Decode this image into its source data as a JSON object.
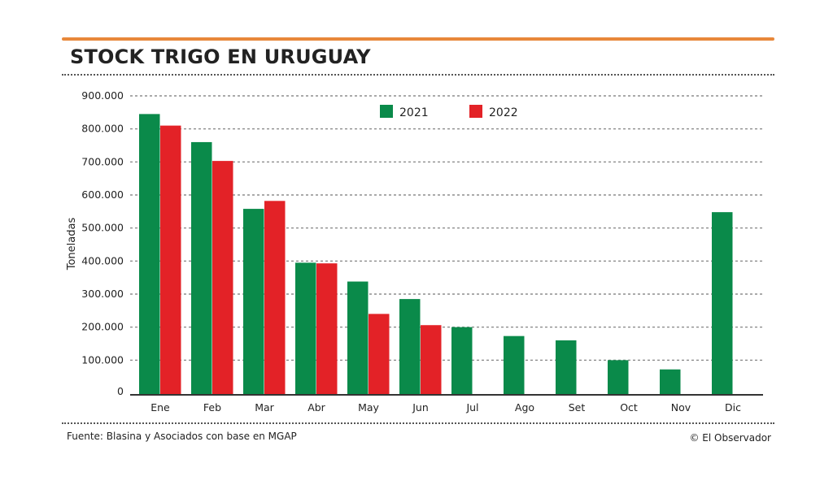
{
  "header": {
    "title": "STOCK TRIGO EN URUGUAY",
    "rule_color": "#e8883a"
  },
  "footer": {
    "source": "Fuente: Blasina y Asociados con base en MGAP",
    "credit": "© El Observador"
  },
  "chart_data": {
    "type": "bar",
    "title": "STOCK TRIGO EN URUGUAY",
    "xlabel": "",
    "ylabel": "Toneladas",
    "ylim": [
      0,
      900000
    ],
    "yticks": [
      0,
      100000,
      200000,
      300000,
      400000,
      500000,
      600000,
      700000,
      800000,
      900000
    ],
    "ytick_labels": [
      "0",
      "100.000",
      "200.000",
      "300.000",
      "400.000",
      "500.000",
      "600.000",
      "700.000",
      "800.000",
      "900.000"
    ],
    "grid": true,
    "legend_position": "top",
    "categories": [
      "Ene",
      "Feb",
      "Mar",
      "Abr",
      "May",
      "Jun",
      "Jul",
      "Ago",
      "Set",
      "Oct",
      "Nov",
      "Dic"
    ],
    "series": [
      {
        "name": "2021",
        "color": "#0a8a4a",
        "values": [
          845000,
          760000,
          558000,
          395000,
          338000,
          285000,
          200000,
          173000,
          160000,
          100000,
          72000,
          548000
        ]
      },
      {
        "name": "2022",
        "color": "#e32227",
        "values": [
          810000,
          703000,
          582000,
          393000,
          240000,
          206000,
          null,
          null,
          null,
          null,
          null,
          null
        ]
      }
    ]
  }
}
